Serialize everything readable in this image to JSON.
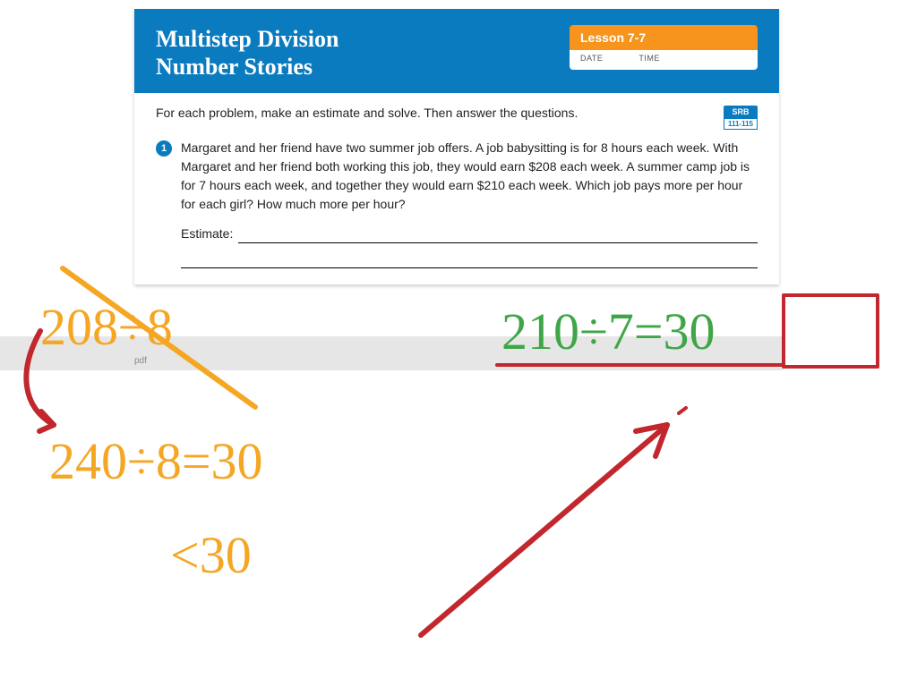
{
  "colors": {
    "header_bg": "#0b7bbf",
    "lesson_tab_bg": "#f7941e",
    "prob_num_bg": "#0b7bbf",
    "srb_bg": "#0b7bbf",
    "annot_orange": "#f5a623",
    "annot_green": "#3fa648",
    "annot_red": "#c1272d"
  },
  "worksheet": {
    "title_line1": "Multistep Division",
    "title_line2": "Number Stories",
    "lesson_label": "Lesson 7-7",
    "date_label": "DATE",
    "time_label": "TIME",
    "instruction": "For each problem, make an estimate and solve. Then answer the questions.",
    "srb_top": "SRB",
    "srb_bottom": "111-115",
    "problem_number": "1",
    "problem_text": "Margaret and her friend have two summer job offers. A job babysitting is for 8 hours each week. With Margaret and her friend both working this job, they would earn $208 each week. A summer camp job is for 7 hours each week, and together they would earn $210 each week. Which job pays more per hour for each girl? How much more per hour?",
    "estimate_label": "Estimate:"
  },
  "annotations": {
    "orange1": "208÷8",
    "orange2": "240÷8=30",
    "orange3": "<30",
    "green1": "210÷7=30",
    "stroke_width_thin": 4,
    "stroke_width_thick": 6,
    "font_family": "Comic Sans MS, cursive",
    "orange_fontsize": 58,
    "green_fontsize": 58
  },
  "pdf_label": "pdf"
}
